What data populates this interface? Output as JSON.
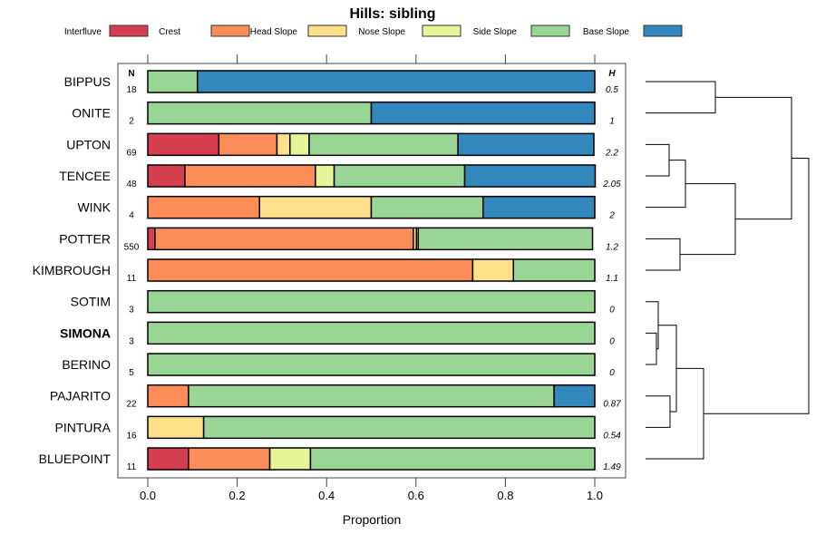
{
  "chart_data": {
    "type": "bar",
    "orientation": "horizontal-stacked",
    "title": "Hills: sibling",
    "xlabel": "Proportion",
    "xlim": [
      0,
      1
    ],
    "xticks": [
      "0.0",
      "0.2",
      "0.4",
      "0.6",
      "0.8",
      "1.0"
    ],
    "xtick_values": [
      0,
      0.2,
      0.4,
      0.6,
      0.8,
      1.0
    ],
    "n_header": "N",
    "h_header": "H",
    "legend_placement": "top",
    "legend": [
      {
        "name": "Interfluve",
        "color": "#D53E4F"
      },
      {
        "name": "Crest",
        "color": "#FC8D59"
      },
      {
        "name": "Head Slope",
        "color": "#FEE08B"
      },
      {
        "name": "Nose Slope",
        "color": "#E6F598"
      },
      {
        "name": "Side Slope",
        "color": "#99D594"
      },
      {
        "name": "Base Slope",
        "color": "#3288BD"
      }
    ],
    "categories": [
      "BIPPUS",
      "ONITE",
      "UPTON",
      "TENCEE",
      "WINK",
      "POTTER",
      "KIMBROUGH",
      "SOTIM",
      "SIMONA",
      "BERINO",
      "PAJARITO",
      "PINTURA",
      "BLUEPOINT"
    ],
    "highlight": "SIMONA",
    "rows": [
      {
        "name": "BIPPUS",
        "n": "18",
        "h": "0.5",
        "values": [
          0,
          0,
          0,
          0,
          0.111,
          0.889
        ]
      },
      {
        "name": "ONITE",
        "n": "2",
        "h": "1",
        "values": [
          0,
          0,
          0,
          0,
          0.5,
          0.5
        ]
      },
      {
        "name": "UPTON",
        "n": "69",
        "h": "2.2",
        "values": [
          0.159,
          0.13,
          0.029,
          0.043,
          0.333,
          0.304
        ]
      },
      {
        "name": "TENCEE",
        "n": "48",
        "h": "2.05",
        "values": [
          0.083,
          0.292,
          0,
          0.042,
          0.292,
          0.292
        ]
      },
      {
        "name": "WINK",
        "n": "4",
        "h": "2",
        "values": [
          0,
          0.25,
          0.25,
          0,
          0.25,
          0.25
        ]
      },
      {
        "name": "POTTER",
        "n": "550",
        "h": "1.2",
        "values": [
          0.016,
          0.578,
          0.007,
          0.004,
          0.39,
          0
        ]
      },
      {
        "name": "KIMBROUGH",
        "n": "11",
        "h": "1.1",
        "values": [
          0,
          0.727,
          0.091,
          0,
          0.182,
          0
        ]
      },
      {
        "name": "SOTIM",
        "n": "3",
        "h": "0",
        "values": [
          0,
          0,
          0,
          0,
          1,
          0
        ]
      },
      {
        "name": "SIMONA",
        "n": "3",
        "h": "0",
        "values": [
          0,
          0,
          0,
          0,
          1,
          0
        ]
      },
      {
        "name": "BERINO",
        "n": "5",
        "h": "0",
        "values": [
          0,
          0,
          0,
          0,
          1,
          0
        ]
      },
      {
        "name": "PAJARITO",
        "n": "22",
        "h": "0.87",
        "values": [
          0,
          0.091,
          0,
          0,
          0.818,
          0.091
        ]
      },
      {
        "name": "PINTURA",
        "n": "16",
        "h": "0.54",
        "values": [
          0,
          0,
          0.125,
          0,
          0.875,
          0
        ]
      },
      {
        "name": "BLUEPOINT",
        "n": "11",
        "h": "1.49",
        "values": [
          0.091,
          0.182,
          0,
          0.091,
          0.636,
          0
        ]
      }
    ]
  }
}
